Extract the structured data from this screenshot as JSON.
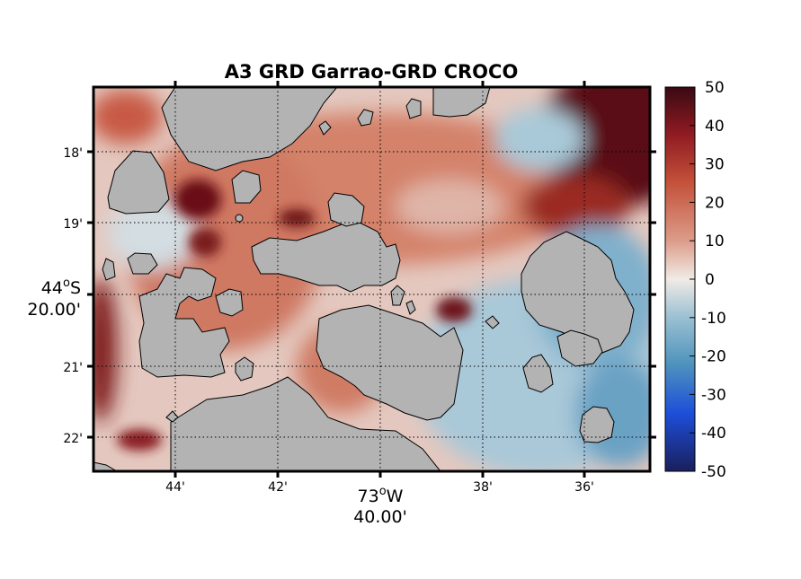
{
  "map": {
    "title": "A3 GRD Garrao-GRD CROCO",
    "x_ticks": [
      "44'",
      "42'",
      "38'",
      "36'"
    ],
    "x_center": {
      "deg": "73",
      "sup": "o",
      "hem": "W",
      "min": "40.00'"
    },
    "y_ticks": [
      "18'",
      "19'",
      "21'",
      "22'"
    ],
    "y_center": {
      "deg": "44",
      "sup": "o",
      "hem": "S",
      "min": "20.00'"
    },
    "land_color": "#b3b3b3",
    "grid": "dotted"
  },
  "colorbar": {
    "ticks": [
      "50",
      "40",
      "30",
      "20",
      "10",
      "0",
      "-10",
      "-20",
      "-30",
      "-40",
      "-50"
    ],
    "range": [
      -50,
      50
    ],
    "colormap": "balance",
    "colors": [
      "#3a0a12",
      "#8e1a22",
      "#c4523a",
      "#dc9c8a",
      "#f0ebe6",
      "#9ac0d2",
      "#4f93bd",
      "#1d4ed8",
      "#1a1f5c"
    ]
  }
}
